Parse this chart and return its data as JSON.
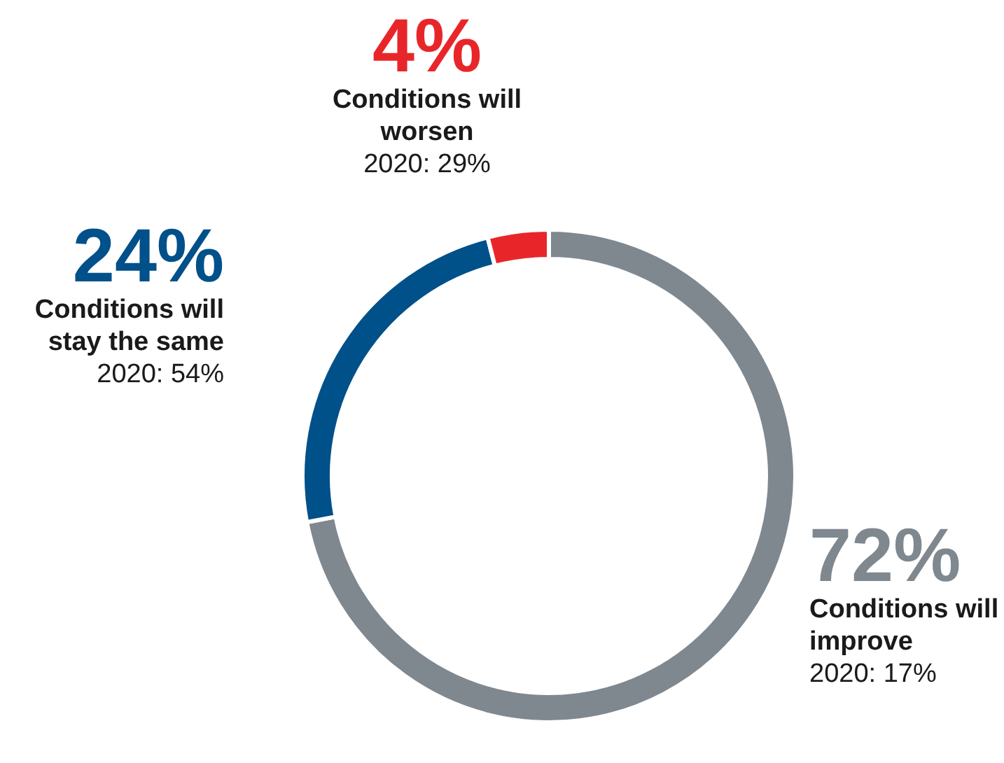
{
  "chart_data": {
    "type": "donut",
    "categories": [
      "Conditions will improve",
      "Conditions will stay the same",
      "Conditions will worsen"
    ],
    "values": [
      72,
      24,
      4
    ],
    "colors": [
      "#7f878f",
      "#00508a",
      "#e8262a"
    ],
    "value_labels": [
      "72%",
      "24%",
      "4%"
    ],
    "annotations": [
      "2020: 17%",
      "2020: 54%",
      "2020: 29%"
    ]
  }
}
